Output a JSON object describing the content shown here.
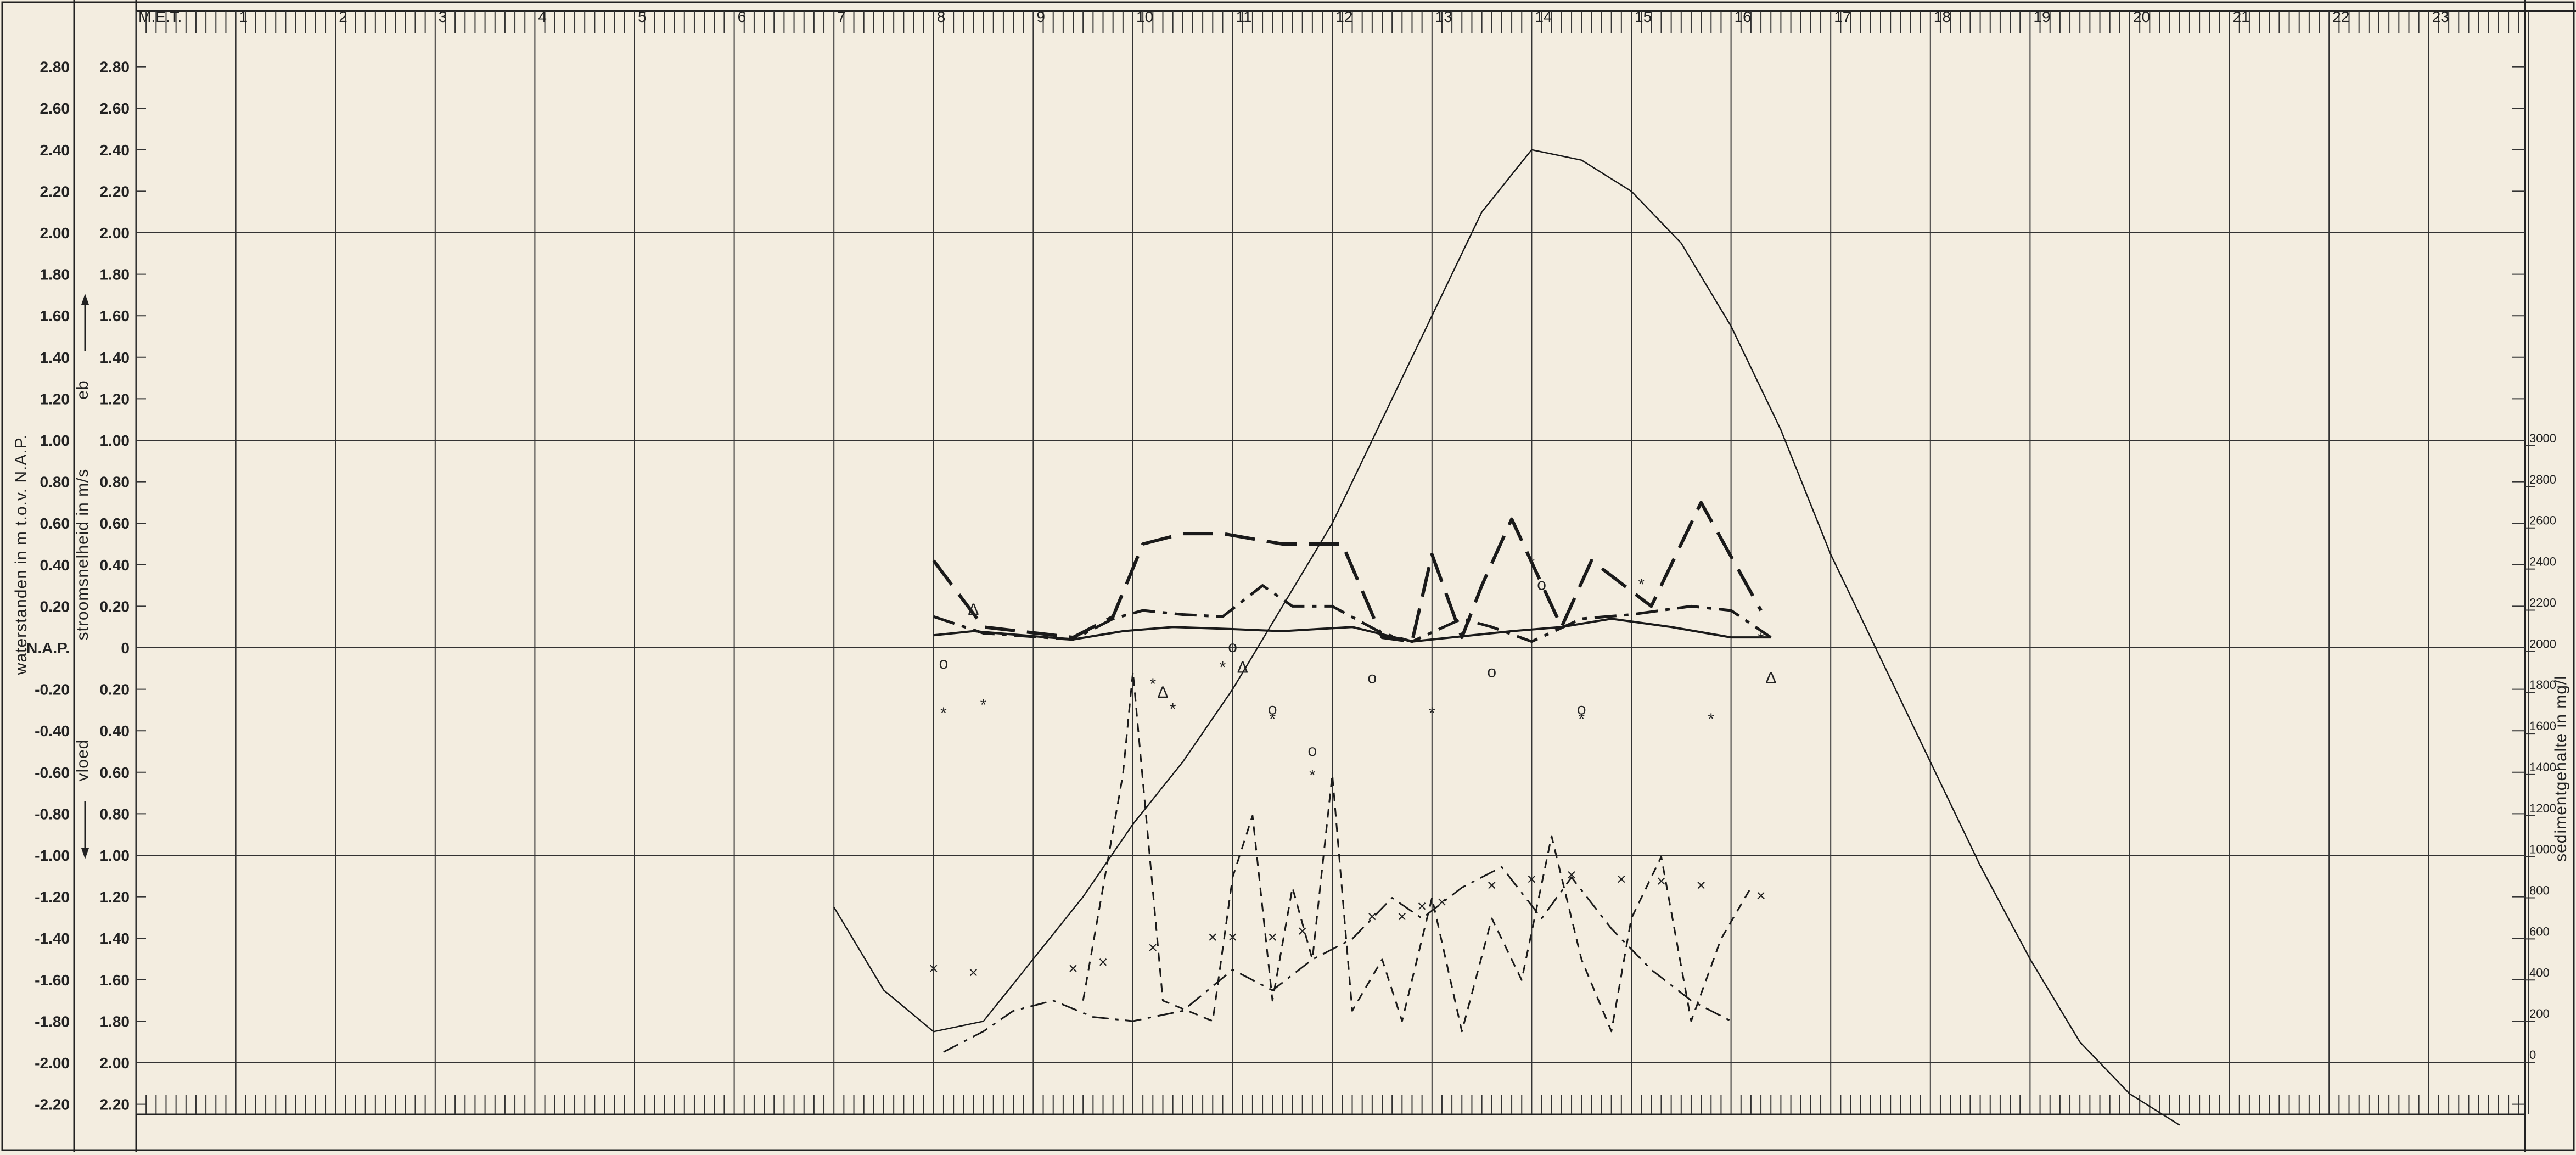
{
  "chart_data": {
    "type": "line",
    "corner_label": "M.E.T.",
    "hours": [
      "1",
      "2",
      "3",
      "4",
      "5",
      "6",
      "7",
      "8",
      "9",
      "10",
      "11",
      "12",
      "13",
      "14",
      "15",
      "16",
      "17",
      "18",
      "19",
      "20",
      "21",
      "22",
      "23"
    ],
    "left_ticks": [
      "2.80",
      "2.60",
      "2.40",
      "2.20",
      "2.00",
      "1.80",
      "1.60",
      "1.40",
      "1.20",
      "1.00",
      "0.80",
      "0.60",
      "0.40",
      "0.20",
      "N.A.P.",
      "-0.20",
      "-0.40",
      "-0.60",
      "-0.80",
      "-1.00",
      "-1.20",
      "-1.40",
      "-1.60",
      "-1.80",
      "-2.00",
      "-2.20"
    ],
    "mid_ticks": [
      "2.80",
      "2.60",
      "2.40",
      "2.20",
      "2.00",
      "1.80",
      "1.60",
      "1.40",
      "1.20",
      "1.00",
      "0.80",
      "0.60",
      "0.40",
      "0.20",
      "0",
      "0.20",
      "0.40",
      "0.60",
      "0.80",
      "1.00",
      "1.20",
      "1.40",
      "1.60",
      "1.80",
      "2.00",
      "2.20"
    ],
    "right_ticks": [
      "3000",
      "2800",
      "2600",
      "2400",
      "2200",
      "2000",
      "1800",
      "1600",
      "1400",
      "1200",
      "1000",
      "800",
      "600",
      "400",
      "200",
      "0"
    ],
    "ylabel_left": "waterstanden in m t.o.v. N.A.P.",
    "ylabel_mid": "stroomsnelheid in m/s",
    "ylabel_eb": "eb",
    "ylabel_vloed": "vloed",
    "ylabel_right": "sedimentgehalte in mg/l",
    "xlim": [
      0,
      24
    ],
    "ylim_water": [
      -2.2,
      2.8
    ],
    "ylim_velocity": [
      -2.2,
      2.8
    ],
    "ylim_sediment": [
      0,
      3000
    ],
    "grid": true,
    "series": [
      {
        "style": "solid-thin",
        "x": [
          7.0,
          7.5,
          8.0,
          8.5,
          9.0,
          9.5,
          10.0,
          10.5,
          11.0,
          11.5,
          12.0,
          12.5,
          13.0,
          13.5,
          14.0,
          14.5,
          15.0,
          15.5,
          16.0,
          16.5,
          17.0,
          17.5,
          18.0,
          18.5,
          19.0,
          19.5,
          20.0,
          20.5
        ],
        "values": [
          -1.25,
          -1.65,
          -1.85,
          -1.8,
          -1.5,
          -1.2,
          -0.85,
          -0.55,
          -0.2,
          0.2,
          0.6,
          1.1,
          1.6,
          2.1,
          2.4,
          2.35,
          2.2,
          1.95,
          1.55,
          1.05,
          0.45,
          -0.05,
          -0.55,
          -1.05,
          -1.5,
          -1.9,
          -2.15,
          -2.3
        ]
      },
      {
        "style": "long-dash",
        "x": [
          8.0,
          8.5,
          9.4,
          9.8,
          10.1,
          10.5,
          10.9,
          11.5,
          12.1,
          12.5,
          12.8,
          13.0,
          13.3,
          13.5,
          13.8,
          14.3,
          14.6,
          15.2,
          15.7,
          16.3
        ],
        "values": [
          0.42,
          0.1,
          0.05,
          0.15,
          0.5,
          0.55,
          0.55,
          0.5,
          0.5,
          0.05,
          0.03,
          0.45,
          0.05,
          0.3,
          0.62,
          0.1,
          0.42,
          0.2,
          0.7,
          0.18
        ]
      },
      {
        "style": "dash-dot",
        "x": [
          8.0,
          8.5,
          9.4,
          9.8,
          10.1,
          10.5,
          10.9,
          11.3,
          11.6,
          12.0,
          12.5,
          12.8,
          13.3,
          13.6,
          14.0,
          14.5,
          15.0,
          15.6,
          16.0,
          16.4
        ],
        "values": [
          0.15,
          0.07,
          0.04,
          0.14,
          0.18,
          0.16,
          0.15,
          0.3,
          0.2,
          0.2,
          0.07,
          0.03,
          0.14,
          0.1,
          0.03,
          0.14,
          0.16,
          0.2,
          0.18,
          0.05
        ]
      },
      {
        "style": "solid",
        "x": [
          8.0,
          8.4,
          9.4,
          9.9,
          10.4,
          11.0,
          11.5,
          12.2,
          12.8,
          13.2,
          13.8,
          14.3,
          14.8,
          15.4,
          16.0,
          16.4
        ],
        "values": [
          0.06,
          0.08,
          0.04,
          0.08,
          0.1,
          0.09,
          0.08,
          0.1,
          0.03,
          0.05,
          0.08,
          0.1,
          0.14,
          0.1,
          0.05,
          0.05
        ]
      }
    ],
    "sediment_series": [
      {
        "style": "short-dash",
        "x": [
          9.5,
          9.9,
          10.0,
          10.3,
          10.8,
          11.0,
          11.2,
          11.4,
          11.6,
          11.8,
          12.0,
          12.2,
          12.5,
          12.7,
          13.0,
          13.3,
          13.6,
          13.9,
          14.2,
          14.5,
          14.8,
          15.0,
          15.3,
          15.6,
          15.9,
          16.2
        ],
        "values": [
          300,
          1400,
          1900,
          300,
          200,
          900,
          1200,
          300,
          850,
          500,
          1400,
          250,
          500,
          200,
          800,
          150,
          700,
          400,
          1100,
          500,
          150,
          700,
          1000,
          200,
          600,
          850
        ]
      },
      {
        "style": "dash-dot-thin",
        "x": [
          8.1,
          8.5,
          8.8,
          9.2,
          9.6,
          10.0,
          10.5,
          11.0,
          11.4,
          11.8,
          12.2,
          12.6,
          12.9,
          13.3,
          13.7,
          14.1,
          14.4,
          14.8,
          15.2,
          15.6,
          16.0
        ],
        "values": [
          50,
          150,
          250,
          300,
          220,
          200,
          250,
          450,
          350,
          500,
          600,
          800,
          700,
          850,
          950,
          700,
          900,
          650,
          450,
          300,
          200
        ]
      }
    ],
    "markers": [
      {
        "symbol": "Δ",
        "x": 8.4,
        "y": 0.18
      },
      {
        "symbol": "Δ",
        "x": 10.3,
        "y": -0.22
      },
      {
        "symbol": "Δ",
        "x": 11.1,
        "y": -0.1
      },
      {
        "symbol": "Δ",
        "x": 16.4,
        "y": -0.15
      },
      {
        "symbol": "o",
        "x": 8.1,
        "y": -0.08
      },
      {
        "symbol": "o",
        "x": 11.0,
        "y": 0.0
      },
      {
        "symbol": "o",
        "x": 11.4,
        "y": -0.3
      },
      {
        "symbol": "o",
        "x": 12.4,
        "y": -0.15
      },
      {
        "symbol": "o",
        "x": 13.6,
        "y": -0.12
      },
      {
        "symbol": "o",
        "x": 14.1,
        "y": 0.3
      },
      {
        "symbol": "o",
        "x": 14.5,
        "y": -0.3
      },
      {
        "symbol": "o",
        "x": 11.8,
        "y": -0.5
      },
      {
        "symbol": "*",
        "x": 8.1,
        "y": -0.32
      },
      {
        "symbol": "*",
        "x": 8.5,
        "y": -0.28
      },
      {
        "symbol": "*",
        "x": 10.2,
        "y": -0.18
      },
      {
        "symbol": "*",
        "x": 10.4,
        "y": -0.3
      },
      {
        "symbol": "*",
        "x": 10.9,
        "y": -0.1
      },
      {
        "symbol": "*",
        "x": 11.4,
        "y": -0.35
      },
      {
        "symbol": "*",
        "x": 11.8,
        "y": -0.62
      },
      {
        "symbol": "*",
        "x": 13.0,
        "y": -0.32
      },
      {
        "symbol": "*",
        "x": 14.0,
        "y": 0.4
      },
      {
        "symbol": "*",
        "x": 14.5,
        "y": -0.35
      },
      {
        "symbol": "*",
        "x": 15.1,
        "y": 0.3
      },
      {
        "symbol": "*",
        "x": 15.8,
        "y": -0.35
      },
      {
        "symbol": "*",
        "x": 16.3,
        "y": 0.04
      },
      {
        "symbol": "×",
        "x": 8.0,
        "y": -1.55
      },
      {
        "symbol": "×",
        "x": 8.4,
        "y": -1.57
      },
      {
        "symbol": "×",
        "x": 9.4,
        "y": -1.55
      },
      {
        "symbol": "×",
        "x": 9.7,
        "y": -1.52
      },
      {
        "symbol": "×",
        "x": 10.2,
        "y": -1.45
      },
      {
        "symbol": "×",
        "x": 10.8,
        "y": -1.4
      },
      {
        "symbol": "×",
        "x": 11.0,
        "y": -1.4
      },
      {
        "symbol": "×",
        "x": 11.4,
        "y": -1.4
      },
      {
        "symbol": "×",
        "x": 11.7,
        "y": -1.37
      },
      {
        "symbol": "×",
        "x": 12.4,
        "y": -1.3
      },
      {
        "symbol": "×",
        "x": 12.7,
        "y": -1.3
      },
      {
        "symbol": "×",
        "x": 12.9,
        "y": -1.25
      },
      {
        "symbol": "×",
        "x": 13.1,
        "y": -1.23
      },
      {
        "symbol": "×",
        "x": 13.6,
        "y": -1.15
      },
      {
        "symbol": "×",
        "x": 14.0,
        "y": -1.12
      },
      {
        "symbol": "×",
        "x": 14.4,
        "y": -1.1
      },
      {
        "symbol": "×",
        "x": 14.9,
        "y": -1.12
      },
      {
        "symbol": "×",
        "x": 15.3,
        "y": -1.13
      },
      {
        "symbol": "×",
        "x": 15.7,
        "y": -1.15
      },
      {
        "symbol": "×",
        "x": 16.3,
        "y": -1.2
      }
    ]
  }
}
